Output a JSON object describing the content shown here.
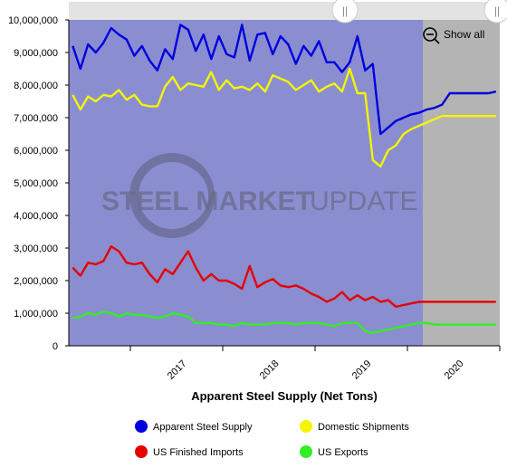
{
  "toolbar": {
    "show_all_label": "Show all"
  },
  "watermark": {
    "text_bold": "STEEL MARKET",
    "text_light": "UPDATE"
  },
  "colors": {
    "plot_bg": "#8a8ed0",
    "shade_bg": "#b4b4b4",
    "blue": "#0000dd",
    "yellow": "#f5f500",
    "red": "#e60000",
    "green": "#33ee22"
  },
  "chart_data": {
    "type": "line",
    "title": "Apparent Steel Supply (Net Tons)",
    "x_ticks": [
      "2017",
      "2018",
      "2019",
      "2020"
    ],
    "x": [
      "2016-05",
      "2016-06",
      "2016-07",
      "2016-08",
      "2016-09",
      "2016-10",
      "2016-11",
      "2016-12",
      "2017-01",
      "2017-02",
      "2017-03",
      "2017-04",
      "2017-05",
      "2017-06",
      "2017-07",
      "2017-08",
      "2017-09",
      "2017-10",
      "2017-11",
      "2017-12",
      "2018-01",
      "2018-02",
      "2018-03",
      "2018-04",
      "2018-05",
      "2018-06",
      "2018-07",
      "2018-08",
      "2018-09",
      "2018-10",
      "2018-11",
      "2018-12",
      "2019-01",
      "2019-02",
      "2019-03",
      "2019-04",
      "2019-05",
      "2019-06",
      "2019-07",
      "2019-08",
      "2019-09",
      "2019-10",
      "2019-11",
      "2019-12",
      "2020-01",
      "2020-02",
      "2020-03",
      "2020-04",
      "2020-05",
      "2020-06",
      "2020-07",
      "2020-08",
      "2020-09",
      "2020-10",
      "2020-11",
      "2020-12"
    ],
    "ylim": [
      0,
      10000000
    ],
    "y_ticks": [
      0,
      1000000,
      2000000,
      3000000,
      4000000,
      5000000,
      6000000,
      7000000,
      8000000,
      9000000,
      10000000
    ],
    "grid": false,
    "legend_position": "bottom",
    "shaded_region": {
      "from_x": "2020-03",
      "to_x": "2020-12",
      "label": ""
    },
    "series": [
      {
        "name": "Apparent Steel Supply",
        "color": "#0000dd",
        "values": [
          9200000,
          8500000,
          9250000,
          9000000,
          9300000,
          9750000,
          9550000,
          9400000,
          8900000,
          9200000,
          8750000,
          8450000,
          9100000,
          8800000,
          9850000,
          9700000,
          9050000,
          9550000,
          8800000,
          9500000,
          8950000,
          8850000,
          9850000,
          8750000,
          9550000,
          9600000,
          8950000,
          9500000,
          9250000,
          8650000,
          9200000,
          8900000,
          9350000,
          8700000,
          8700000,
          8400000,
          8700000,
          9500000,
          8450000,
          8650000,
          6500000,
          6700000,
          6900000,
          7000000,
          7100000,
          7150000,
          7250000,
          7300000,
          7400000,
          7750000,
          7750000,
          7750000,
          7750000,
          7750000,
          7750000,
          7800000
        ]
      },
      {
        "name": "Domestic Shipments",
        "color": "#f5f500",
        "values": [
          7700000,
          7250000,
          7650000,
          7500000,
          7700000,
          7650000,
          7850000,
          7550000,
          7700000,
          7400000,
          7350000,
          7350000,
          7950000,
          8250000,
          7850000,
          8050000,
          8000000,
          7950000,
          8400000,
          7850000,
          8150000,
          7900000,
          7950000,
          7850000,
          8050000,
          7800000,
          8300000,
          8200000,
          8100000,
          7850000,
          8000000,
          8150000,
          7800000,
          7950000,
          8050000,
          7800000,
          8500000,
          7750000,
          7750000,
          5700000,
          5500000,
          6000000,
          6150000,
          6500000,
          6650000,
          6750000,
          6850000,
          6950000,
          7050000,
          7050000,
          7050000,
          7050000,
          7050000,
          7050000,
          7050000,
          7050000
        ]
      },
      {
        "name": "US Finished Imports",
        "color": "#e60000",
        "values": [
          2400000,
          2150000,
          2550000,
          2500000,
          2600000,
          3050000,
          2900000,
          2550000,
          2500000,
          2550000,
          2200000,
          1950000,
          2350000,
          2200000,
          2550000,
          2900000,
          2400000,
          2000000,
          2200000,
          2000000,
          2000000,
          1900000,
          1750000,
          2450000,
          1800000,
          1950000,
          2050000,
          1850000,
          1800000,
          1850000,
          1750000,
          1600000,
          1500000,
          1350000,
          1450000,
          1650000,
          1400000,
          1550000,
          1400000,
          1500000,
          1350000,
          1400000,
          1200000,
          1250000,
          1300000,
          1350000,
          1350000,
          1350000,
          1350000,
          1350000,
          1350000,
          1350000,
          1350000,
          1350000,
          1350000,
          1350000
        ]
      },
      {
        "name": "US Exports",
        "color": "#33ee22",
        "values": [
          850000,
          900000,
          1000000,
          950000,
          1050000,
          1000000,
          900000,
          1000000,
          950000,
          950000,
          900000,
          850000,
          900000,
          1000000,
          950000,
          900000,
          700000,
          700000,
          700000,
          650000,
          650000,
          600000,
          700000,
          650000,
          650000,
          650000,
          700000,
          700000,
          700000,
          650000,
          700000,
          700000,
          700000,
          650000,
          600000,
          700000,
          700000,
          700000,
          450000,
          400000,
          450000,
          500000,
          550000,
          600000,
          650000,
          700000,
          700000,
          650000,
          650000,
          650000,
          650000,
          650000,
          650000,
          650000,
          650000,
          650000
        ]
      }
    ]
  }
}
